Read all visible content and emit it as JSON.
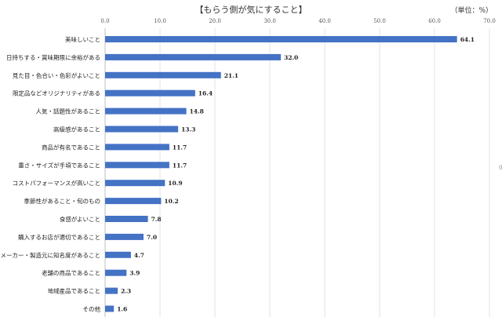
{
  "chart_data": {
    "type": "bar",
    "orientation": "horizontal",
    "title": "【もらう側が気にすること】",
    "unit": "（単位：%）",
    "xlim": [
      0,
      70
    ],
    "xticks": [
      "0.0",
      "10.0",
      "20.0",
      "30.0",
      "40.0",
      "50.0",
      "60.0",
      "70.0"
    ],
    "grid": true,
    "bar_color": "#4472c4",
    "categories": [
      "美味しいこと",
      "日持ちする・賞味期限に余裕がある",
      "見た目・色合い・色彩がよいこと",
      "限定品などオリジナリティがある",
      "人気・話題性があること",
      "高級感があること",
      "商品が有名であること",
      "重さ・サイズが手頃であること",
      "コストパフォーマンスが高いこと",
      "季節性があること・旬のもの",
      "食感がよいこと",
      "購入するお店が適切であること",
      "メーカー・製造元に知名度があること",
      "老舗の商品であること",
      "地域産品であること",
      "その他"
    ],
    "values": [
      64.1,
      32.0,
      21.1,
      16.4,
      14.8,
      13.3,
      11.7,
      11.7,
      10.9,
      10.2,
      7.8,
      7.0,
      4.7,
      3.9,
      2.3,
      1.6
    ],
    "value_labels": [
      "64.1",
      "32.0",
      "21.1",
      "16.4",
      "14.8",
      "13.3",
      "11.7",
      "11.7",
      "10.9",
      "10.2",
      "7.8",
      "7.0",
      "4.7",
      "3.9",
      "2.3",
      "1.6"
    ]
  },
  "stray_mark": "0"
}
